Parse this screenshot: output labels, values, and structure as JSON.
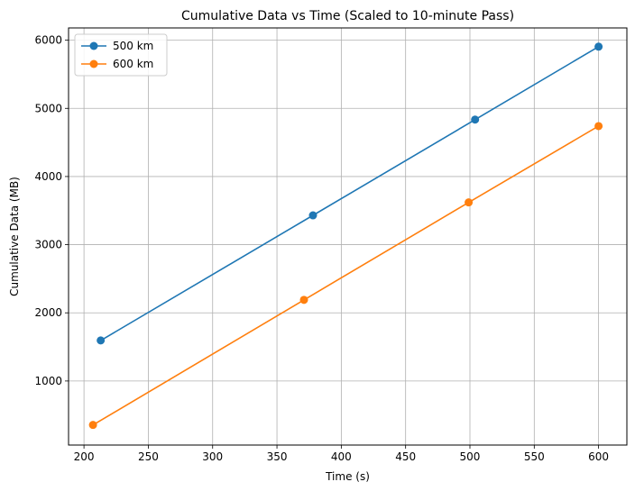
{
  "chart_data": {
    "type": "line",
    "title": "Cumulative Data vs Time (Scaled to 10-minute Pass)",
    "xlabel": "Time (s)",
    "ylabel": "Cumulative Data (MB)",
    "xlim": [
      188,
      622
    ],
    "ylim": [
      60,
      6180
    ],
    "xticks": [
      200,
      250,
      300,
      350,
      400,
      450,
      500,
      550,
      600
    ],
    "yticks": [
      1000,
      2000,
      3000,
      4000,
      5000,
      6000
    ],
    "grid": true,
    "legend_position": "top-left",
    "series": [
      {
        "name": "500 km",
        "color": "#1f77b4",
        "points": [
          [
            213,
            1595
          ],
          [
            378,
            3430
          ],
          [
            504,
            4835
          ],
          [
            600,
            5905
          ]
        ]
      },
      {
        "name": "600 km",
        "color": "#ff7f0e",
        "points": [
          [
            207,
            355
          ],
          [
            371,
            2190
          ],
          [
            499,
            3620
          ],
          [
            600,
            4740
          ]
        ]
      }
    ]
  }
}
